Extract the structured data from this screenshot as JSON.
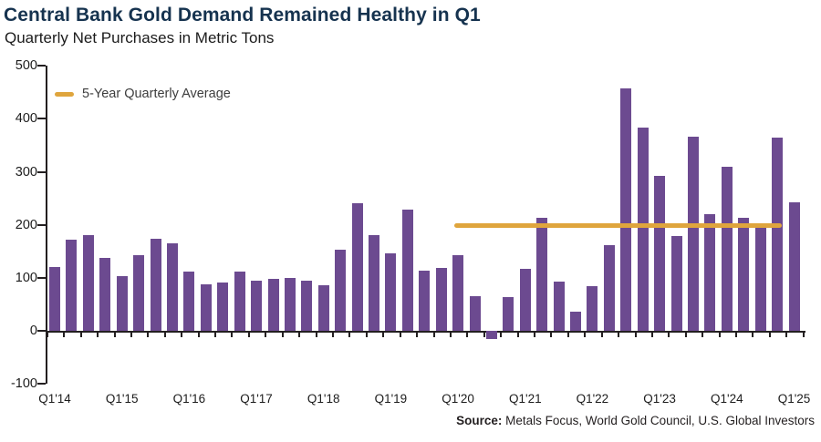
{
  "header": {
    "title": "Central Bank Gold Demand Remained Healthy in Q1",
    "subtitle": "Quarterly Net Purchases in Metric Tons"
  },
  "source": {
    "label": "Source:",
    "text": " Metals Focus, World Gold Council, U.S. Global Investors"
  },
  "colors": {
    "bar_purple": "#6c4a90",
    "average_orange": "#dfa53d",
    "title_navy": "#16334f",
    "axis_black": "#231f20"
  },
  "chart_data": {
    "type": "bar",
    "title": "Central Bank Gold Demand Remained Healthy in Q1",
    "subtitle": "Quarterly Net Purchases in Metric Tons",
    "unit": "metric tons",
    "grid": false,
    "ylim": [
      -100,
      500
    ],
    "y_ticks": [
      500,
      400,
      300,
      200,
      100,
      0,
      -100
    ],
    "x_tick_labels": [
      "Q1'14",
      "Q1'15",
      "Q1'16",
      "Q1'17",
      "Q1'18",
      "Q1'19",
      "Q1'20",
      "Q1'21",
      "Q1'22",
      "Q1'23",
      "Q1'24",
      "Q1'25"
    ],
    "categories": [
      "Q1'14",
      "Q2'14",
      "Q3'14",
      "Q4'14",
      "Q1'15",
      "Q2'15",
      "Q3'15",
      "Q4'15",
      "Q1'16",
      "Q2'16",
      "Q3'16",
      "Q4'16",
      "Q1'17",
      "Q2'17",
      "Q3'17",
      "Q4'17",
      "Q1'18",
      "Q2'18",
      "Q3'18",
      "Q4'18",
      "Q1'19",
      "Q2'19",
      "Q3'19",
      "Q4'19",
      "Q1'20",
      "Q2'20",
      "Q3'20",
      "Q4'20",
      "Q1'21",
      "Q2'21",
      "Q3'21",
      "Q4'21",
      "Q1'22",
      "Q2'22",
      "Q3'22",
      "Q4'22",
      "Q1'23",
      "Q2'23",
      "Q3'23",
      "Q4'23",
      "Q1'24",
      "Q2'24",
      "Q3'24",
      "Q4'24",
      "Q1'25"
    ],
    "values": [
      121,
      172,
      180,
      138,
      104,
      143,
      174,
      165,
      112,
      87,
      91,
      112,
      94,
      98,
      99,
      95,
      86,
      153,
      241,
      180,
      147,
      229,
      114,
      119,
      142,
      65,
      -15,
      63,
      117,
      213,
      93,
      37,
      85,
      161,
      458,
      383,
      292,
      179,
      367,
      220,
      310,
      214,
      203,
      365,
      243
    ],
    "average_line": {
      "label": "5-Year Quarterly Average",
      "value": 198,
      "start_category": "Q1'20",
      "end_category": "Q4'24",
      "legend_position": "top-left"
    }
  }
}
